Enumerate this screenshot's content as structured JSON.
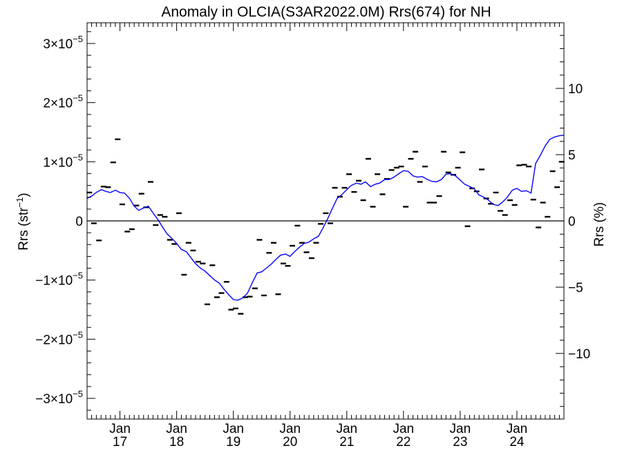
{
  "chart_data": {
    "type": "scatter",
    "title": "Anomaly in OLCIA(S3AR2022.0M) Rrs(674) for NH",
    "ylabel_left": {
      "base": "Rrs (str",
      "sup": "−1",
      "close": ")"
    },
    "ylabel_right": "Rrs (%)",
    "xlabel": "",
    "x_ticks": [
      {
        "month": "Jan",
        "year": "17",
        "t": 2017.0
      },
      {
        "month": "Jan",
        "year": "18",
        "t": 2018.0
      },
      {
        "month": "Jan",
        "year": "19",
        "t": 2019.0
      },
      {
        "month": "Jan",
        "year": "20",
        "t": 2020.0
      },
      {
        "month": "Jan",
        "year": "21",
        "t": 2021.0
      },
      {
        "month": "Jan",
        "year": "22",
        "t": 2022.0
      },
      {
        "month": "Jan",
        "year": "23",
        "t": 2023.0
      },
      {
        "month": "Jan",
        "year": "24",
        "t": 2024.0
      }
    ],
    "xlim": [
      2016.42,
      2024.83
    ],
    "ylim_left": [
      -3.35,
      3.35
    ],
    "y_left_unit_exponent": -5,
    "y_left_ticks": [
      {
        "mant": "3",
        "exp": "−5",
        "v": 3
      },
      {
        "mant": "2",
        "exp": "−5",
        "v": 2
      },
      {
        "mant": "1",
        "exp": "−5",
        "v": 1
      },
      {
        "mant": "0",
        "exp": "",
        "v": 0
      },
      {
        "mant": "−1",
        "exp": "−5",
        "v": -1
      },
      {
        "mant": "−2",
        "exp": "−5",
        "v": -2
      },
      {
        "mant": "−3",
        "exp": "−5",
        "v": -3
      }
    ],
    "ylim_right": [
      -14.95,
      14.95
    ],
    "y_right_ticks": [
      {
        "label": "10",
        "v": 10
      },
      {
        "label": "5",
        "v": 5
      },
      {
        "label": "0",
        "v": 0
      },
      {
        "label": "−5",
        "v": -5
      },
      {
        "label": "−10",
        "v": -10
      }
    ],
    "zero_line": true,
    "grid": false,
    "legend": "none",
    "colors": {
      "points": "#000000",
      "running_mean": "#0000ff",
      "axes": "#000000",
      "background": "#ffffff"
    },
    "points": {
      "x": [
        2016.46,
        2016.54,
        2016.63,
        2016.71,
        2016.79,
        2016.88,
        2016.96,
        2017.04,
        2017.13,
        2017.21,
        2017.29,
        2017.38,
        2017.46,
        2017.54,
        2017.63,
        2017.71,
        2017.79,
        2017.88,
        2017.96,
        2018.04,
        2018.13,
        2018.21,
        2018.29,
        2018.38,
        2018.46,
        2018.54,
        2018.63,
        2018.71,
        2018.79,
        2018.88,
        2018.96,
        2019.04,
        2019.13,
        2019.21,
        2019.29,
        2019.38,
        2019.46,
        2019.54,
        2019.63,
        2019.71,
        2019.79,
        2019.88,
        2019.96,
        2020.04,
        2020.13,
        2020.21,
        2020.29,
        2020.38,
        2020.46,
        2020.54,
        2020.63,
        2020.71,
        2020.79,
        2020.88,
        2020.96,
        2021.04,
        2021.13,
        2021.21,
        2021.29,
        2021.38,
        2021.46,
        2021.54,
        2021.63,
        2021.71,
        2021.79,
        2021.88,
        2021.96,
        2022.04,
        2022.13,
        2022.21,
        2022.29,
        2022.38,
        2022.46,
        2022.54,
        2022.63,
        2022.71,
        2022.79,
        2022.88,
        2022.96,
        2023.04,
        2023.13,
        2023.21,
        2023.29,
        2023.38,
        2023.46,
        2023.54,
        2023.63,
        2023.71,
        2023.79,
        2023.88,
        2023.96,
        2024.04,
        2024.13,
        2024.21,
        2024.29,
        2024.38,
        2024.46,
        2024.54,
        2024.63,
        2024.71,
        2024.79
      ],
      "y": [
        0.48,
        -0.04,
        -0.33,
        0.58,
        0.57,
        0.99,
        1.38,
        0.28,
        -0.18,
        -0.14,
        0.26,
        0.46,
        0.23,
        0.66,
        -0.07,
        0.1,
        0.07,
        -0.32,
        -0.39,
        0.13,
        -0.91,
        -0.37,
        -0.5,
        -0.69,
        -0.72,
        -1.41,
        -0.75,
        -1.29,
        -1.22,
        -1.03,
        -1.5,
        -1.48,
        -1.57,
        -1.29,
        -1.28,
        -1.14,
        -0.32,
        -1.26,
        -0.54,
        -0.37,
        -1.24,
        -0.72,
        -0.76,
        -0.42,
        -0.08,
        -0.37,
        -0.53,
        -0.63,
        -0.37,
        -0.05,
        0.13,
        -0.04,
        0.56,
        0.41,
        0.56,
        0.79,
        0.49,
        0.68,
        0.35,
        1.05,
        0.24,
        0.79,
        0.45,
        0.71,
        0.86,
        0.9,
        0.92,
        0.24,
        1.05,
        1.17,
        0.66,
        0.92,
        0.31,
        0.31,
        0.42,
        1.17,
        0.82,
        0.78,
        0.9,
        1.16,
        -0.09,
        0.55,
        0.5,
        0.87,
        0.38,
        0.29,
        0.48,
        0.17,
        0.1,
        0.35,
        0.27,
        0.94,
        0.95,
        0.92,
        0.36,
        -0.11,
        0.31,
        0.07,
        0.84,
        0.57,
        1.0
      ]
    },
    "running_mean": {
      "x": [
        2016.42,
        2016.5,
        2016.58,
        2016.67,
        2016.75,
        2016.83,
        2016.92,
        2017.0,
        2017.08,
        2017.17,
        2017.25,
        2017.33,
        2017.42,
        2017.5,
        2017.58,
        2017.67,
        2017.75,
        2017.83,
        2017.92,
        2018.0,
        2018.08,
        2018.17,
        2018.25,
        2018.33,
        2018.42,
        2018.5,
        2018.58,
        2018.67,
        2018.75,
        2018.83,
        2018.92,
        2019.0,
        2019.08,
        2019.17,
        2019.25,
        2019.33,
        2019.42,
        2019.5,
        2019.58,
        2019.67,
        2019.75,
        2019.83,
        2019.92,
        2020.0,
        2020.08,
        2020.17,
        2020.25,
        2020.33,
        2020.42,
        2020.5,
        2020.58,
        2020.67,
        2020.75,
        2020.83,
        2020.92,
        2021.0,
        2021.08,
        2021.17,
        2021.25,
        2021.33,
        2021.42,
        2021.5,
        2021.58,
        2021.67,
        2021.75,
        2021.83,
        2021.92,
        2022.0,
        2022.08,
        2022.17,
        2022.25,
        2022.33,
        2022.42,
        2022.5,
        2022.58,
        2022.67,
        2022.75,
        2022.83,
        2022.92,
        2023.0,
        2023.08,
        2023.17,
        2023.25,
        2023.33,
        2023.42,
        2023.5,
        2023.58,
        2023.67,
        2023.75,
        2023.83,
        2023.92,
        2024.0,
        2024.08,
        2024.17,
        2024.25,
        2024.33,
        2024.42,
        2024.5,
        2024.58,
        2024.67,
        2024.75,
        2024.83
      ],
      "y": [
        0.38,
        0.42,
        0.48,
        0.53,
        0.5,
        0.48,
        0.52,
        0.48,
        0.47,
        0.38,
        0.25,
        0.18,
        0.22,
        0.25,
        0.14,
        0.02,
        -0.1,
        -0.22,
        -0.3,
        -0.38,
        -0.48,
        -0.52,
        -0.62,
        -0.72,
        -0.8,
        -0.85,
        -0.92,
        -1.0,
        -1.05,
        -1.15,
        -1.25,
        -1.33,
        -1.34,
        -1.3,
        -1.22,
        -1.05,
        -0.88,
        -0.86,
        -0.8,
        -0.73,
        -0.65,
        -0.58,
        -0.56,
        -0.6,
        -0.52,
        -0.44,
        -0.38,
        -0.36,
        -0.3,
        -0.26,
        -0.12,
        0.05,
        0.22,
        0.38,
        0.45,
        0.53,
        0.6,
        0.64,
        0.62,
        0.66,
        0.58,
        0.62,
        0.64,
        0.7,
        0.7,
        0.74,
        0.8,
        0.85,
        0.84,
        0.76,
        0.74,
        0.75,
        0.7,
        0.67,
        0.66,
        0.7,
        0.79,
        0.8,
        0.76,
        0.69,
        0.62,
        0.58,
        0.54,
        0.44,
        0.4,
        0.35,
        0.28,
        0.26,
        0.32,
        0.4,
        0.52,
        0.55,
        0.5,
        0.51,
        0.47,
        0.97,
        1.12,
        1.27,
        1.38,
        1.42,
        1.44,
        1.45
      ]
    }
  }
}
